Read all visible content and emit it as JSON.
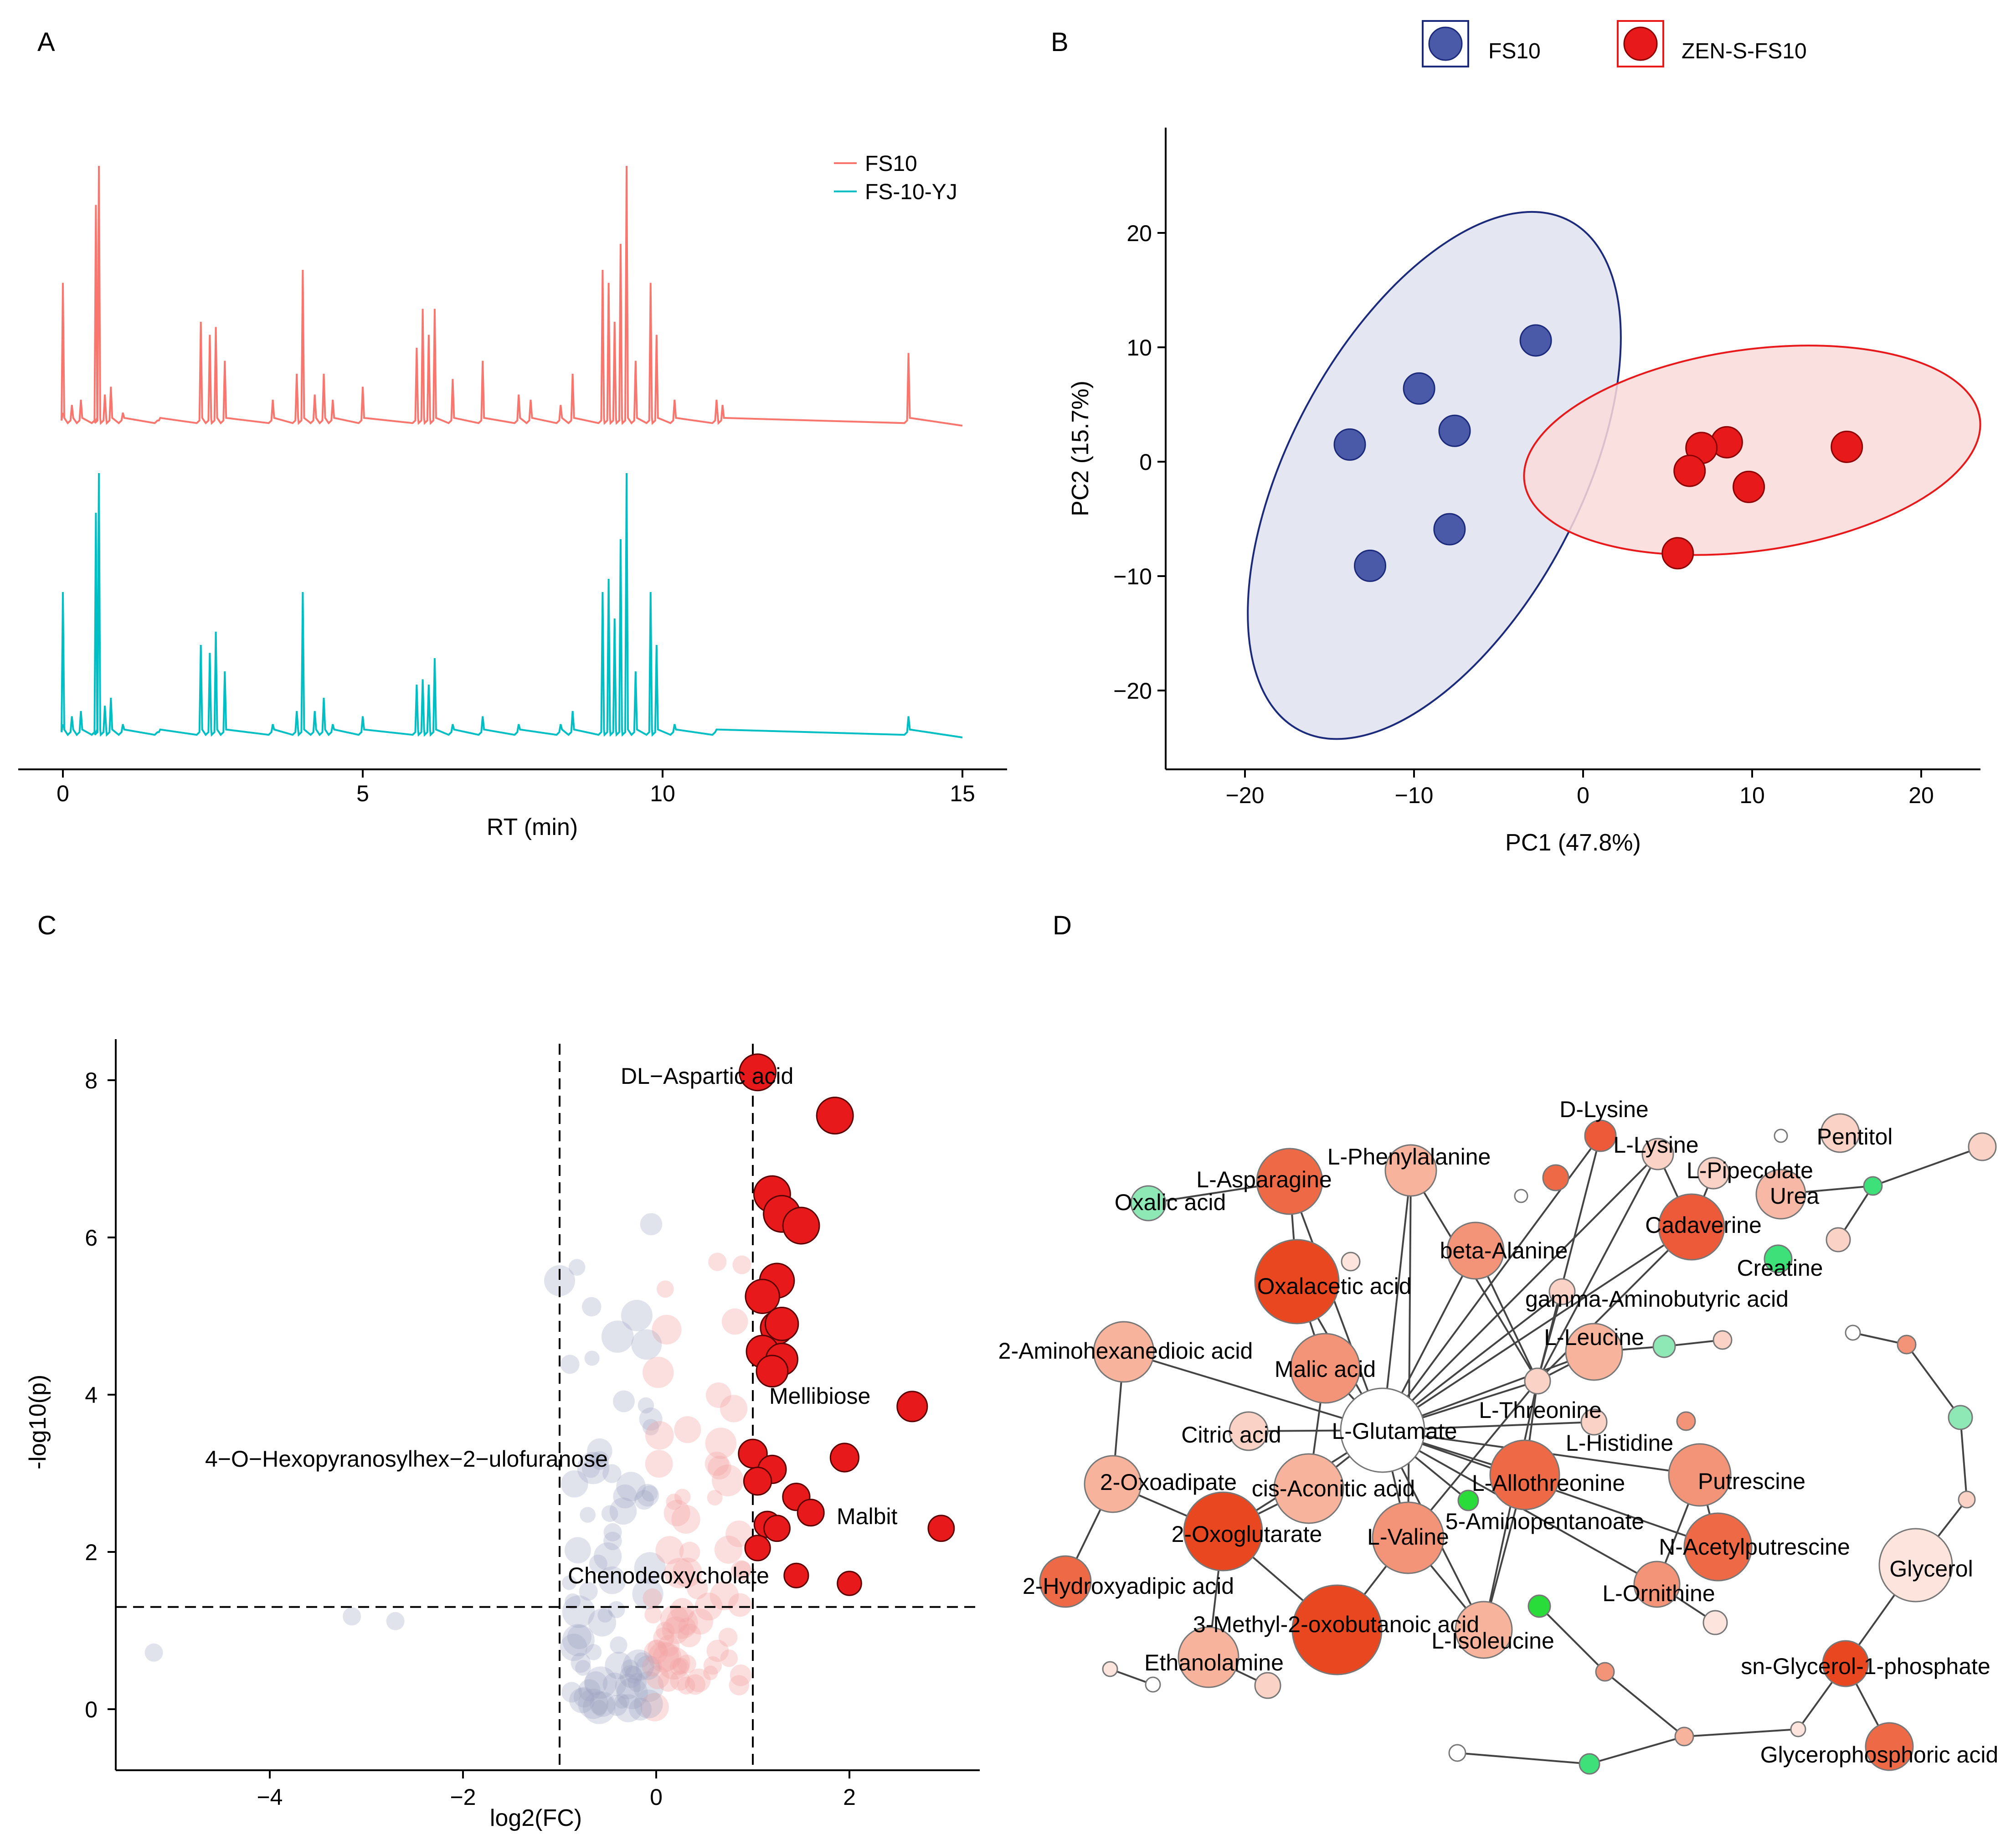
{
  "panels": {
    "A": "A",
    "B": "B",
    "C": "C",
    "D": "D"
  },
  "chart_data": [
    {
      "panel": "A",
      "type": "line",
      "title": "",
      "xlabel": "RT (min)",
      "ylabel": "",
      "xlim": [
        0,
        15
      ],
      "xticks": [
        0,
        5,
        10,
        15
      ],
      "legend_position": "top-right",
      "series": [
        {
          "name": "FS10",
          "color": "#f8766d",
          "baseline": 0.0,
          "peaks": [
            [
              0.0,
              0.55
            ],
            [
              0.15,
              0.08
            ],
            [
              0.3,
              0.1
            ],
            [
              0.55,
              0.85
            ],
            [
              0.6,
              1.0
            ],
            [
              0.7,
              0.12
            ],
            [
              0.8,
              0.15
            ],
            [
              1.0,
              0.05
            ],
            [
              1.6,
              0.02
            ],
            [
              2.3,
              0.4
            ],
            [
              2.45,
              0.35
            ],
            [
              2.55,
              0.38
            ],
            [
              2.7,
              0.25
            ],
            [
              3.5,
              0.1
            ],
            [
              3.9,
              0.2
            ],
            [
              4.0,
              0.6
            ],
            [
              4.2,
              0.12
            ],
            [
              4.35,
              0.2
            ],
            [
              4.5,
              0.1
            ],
            [
              5.0,
              0.15
            ],
            [
              5.9,
              0.3
            ],
            [
              6.0,
              0.45
            ],
            [
              6.1,
              0.35
            ],
            [
              6.2,
              0.45
            ],
            [
              6.5,
              0.18
            ],
            [
              7.0,
              0.25
            ],
            [
              7.6,
              0.12
            ],
            [
              7.8,
              0.1
            ],
            [
              8.3,
              0.08
            ],
            [
              8.5,
              0.2
            ],
            [
              9.0,
              0.6
            ],
            [
              9.1,
              0.55
            ],
            [
              9.2,
              0.4
            ],
            [
              9.3,
              0.7
            ],
            [
              9.4,
              1.0
            ],
            [
              9.55,
              0.25
            ],
            [
              9.8,
              0.55
            ],
            [
              9.9,
              0.35
            ],
            [
              10.2,
              0.1
            ],
            [
              10.9,
              0.1
            ],
            [
              11.0,
              0.08
            ],
            [
              14.1,
              0.28
            ]
          ]
        },
        {
          "name": "FS-10-YJ",
          "color": "#00bfc4",
          "baseline": 0.0,
          "peaks": [
            [
              0.0,
              0.55
            ],
            [
              0.15,
              0.08
            ],
            [
              0.3,
              0.1
            ],
            [
              0.55,
              0.85
            ],
            [
              0.6,
              1.0
            ],
            [
              0.7,
              0.12
            ],
            [
              0.8,
              0.15
            ],
            [
              1.0,
              0.05
            ],
            [
              1.6,
              0.02
            ],
            [
              2.3,
              0.35
            ],
            [
              2.45,
              0.32
            ],
            [
              2.55,
              0.4
            ],
            [
              2.7,
              0.25
            ],
            [
              3.5,
              0.05
            ],
            [
              3.9,
              0.1
            ],
            [
              4.0,
              0.55
            ],
            [
              4.2,
              0.1
            ],
            [
              4.35,
              0.15
            ],
            [
              4.5,
              0.05
            ],
            [
              5.0,
              0.08
            ],
            [
              5.9,
              0.2
            ],
            [
              6.0,
              0.22
            ],
            [
              6.1,
              0.2
            ],
            [
              6.2,
              0.3
            ],
            [
              6.5,
              0.05
            ],
            [
              7.0,
              0.08
            ],
            [
              7.6,
              0.05
            ],
            [
              8.3,
              0.05
            ],
            [
              8.5,
              0.1
            ],
            [
              9.0,
              0.55
            ],
            [
              9.1,
              0.6
            ],
            [
              9.2,
              0.45
            ],
            [
              9.3,
              0.75
            ],
            [
              9.4,
              1.0
            ],
            [
              9.55,
              0.25
            ],
            [
              9.8,
              0.55
            ],
            [
              9.9,
              0.35
            ],
            [
              10.2,
              0.05
            ],
            [
              10.9,
              0.03
            ],
            [
              14.1,
              0.08
            ]
          ]
        }
      ]
    },
    {
      "panel": "B",
      "type": "scatter",
      "title": "",
      "xlabel": "PC1 (47.8%)",
      "ylabel": "PC2 (15.7%)",
      "xlim": [
        -24,
        24
      ],
      "ylim": [
        -27,
        29
      ],
      "xticks": [
        -20,
        -10,
        0,
        10,
        20
      ],
      "yticks": [
        -20,
        -10,
        0,
        10,
        20
      ],
      "legend_position": "top",
      "series": [
        {
          "name": "FS10",
          "color": "#4a5aa8",
          "edge": "#1b2a7a",
          "ellipse_fill": "#dfe3ee",
          "ellipse_stroke": "#1b2a7a",
          "points": [
            [
              -2.8,
              10.6
            ],
            [
              -9.7,
              6.4
            ],
            [
              -7.6,
              2.7
            ],
            [
              -13.8,
              1.5
            ],
            [
              -7.9,
              -5.9
            ],
            [
              -12.6,
              -9.1
            ]
          ]
        },
        {
          "name": "ZEN-S-FS10",
          "color": "#e8191a",
          "edge": "#8b0000",
          "ellipse_fill": "#fadada",
          "ellipse_stroke": "#e8191a",
          "points": [
            [
              8.5,
              1.7
            ],
            [
              7.0,
              1.2
            ],
            [
              15.6,
              1.3
            ],
            [
              6.3,
              -0.8
            ],
            [
              9.8,
              -2.2
            ],
            [
              5.6,
              -8.0
            ]
          ]
        }
      ]
    },
    {
      "panel": "C",
      "type": "scatter",
      "title": "",
      "xlabel": "log2(FC)",
      "ylabel": "-log10(p)",
      "xlim": [
        -5.6,
        3.4
      ],
      "ylim": [
        -0.5,
        8.4
      ],
      "xticks": [
        -4,
        -2,
        0,
        2
      ],
      "yticks": [
        0,
        2,
        4,
        6,
        8
      ],
      "thresholds": {
        "x": [
          -1,
          1
        ],
        "y": 1.3
      },
      "significant_up": [
        [
          1.05,
          8.1
        ],
        [
          1.85,
          7.55
        ],
        [
          1.2,
          6.55
        ],
        [
          1.3,
          6.3
        ],
        [
          1.5,
          6.15
        ],
        [
          1.25,
          5.45
        ],
        [
          1.1,
          5.25
        ],
        [
          1.25,
          4.85
        ],
        [
          1.3,
          4.9
        ],
        [
          1.1,
          4.55
        ],
        [
          1.3,
          4.45
        ],
        [
          1.2,
          4.3
        ],
        [
          2.65,
          3.85
        ],
        [
          1.0,
          3.25
        ],
        [
          1.95,
          3.2
        ],
        [
          1.2,
          3.05
        ],
        [
          1.05,
          2.9
        ],
        [
          1.45,
          2.7
        ],
        [
          1.6,
          2.5
        ],
        [
          1.15,
          2.35
        ],
        [
          1.25,
          2.3
        ],
        [
          2.95,
          2.3
        ],
        [
          1.05,
          2.05
        ],
        [
          1.45,
          1.7
        ],
        [
          2.0,
          1.6
        ]
      ],
      "annotations": [
        {
          "label": "DL−Aspartic acid",
          "x": 1.05,
          "y": 8.1
        },
        {
          "label": "Mellibiose",
          "x": 2.65,
          "y": 3.85
        },
        {
          "label": "4−O−Hexopyranosylhex−2−ulofuranose",
          "x": 1.0,
          "y": 3.25
        },
        {
          "label": "Malbit",
          "x": 2.95,
          "y": 2.3
        },
        {
          "label": "Chenodeoxycholate",
          "x": 1.45,
          "y": 1.7
        }
      ]
    },
    {
      "panel": "D",
      "type": "network",
      "title": "",
      "nodes": [
        {
          "id": "D-Lysine",
          "label": "D-Lysine",
          "color": "#ec5a3a"
        },
        {
          "id": "L-Lysine",
          "label": "L-Lysine",
          "color": "#fbd2c6"
        },
        {
          "id": "Pentitol",
          "label": "Pentitol",
          "color": "#fbd2c6"
        },
        {
          "id": "L-Pipecolate",
          "label": "L-Pipecolate",
          "color": "#fbd2c6"
        },
        {
          "id": "Urea",
          "label": "Urea",
          "color": "#f7b9a6"
        },
        {
          "id": "L-Phenylalanine",
          "label": "L-Phenylalanine",
          "color": "#f8b39c"
        },
        {
          "id": "L-Asparagine",
          "label": "L-Asparagine",
          "color": "#ee6a47"
        },
        {
          "id": "Oxalic acid",
          "label": "Oxalic acid",
          "color": "#8ee8b6"
        },
        {
          "id": "Cadaverine",
          "label": "Cadaverine",
          "color": "#ec5a3a"
        },
        {
          "id": "Creatine",
          "label": "Creatine",
          "color": "#3ee07a"
        },
        {
          "id": "beta-Alanine",
          "label": "beta-Alanine",
          "color": "#f39478"
        },
        {
          "id": "Oxalacetic acid",
          "label": "Oxalacetic acid",
          "color": "#e9471f"
        },
        {
          "id": "gamma-Aminobutyric acid",
          "label": "gamma-Aminobutyric acid",
          "color": "#fbd2c6"
        },
        {
          "id": "2-Aminohexanedioic acid",
          "label": "2-Aminohexanedioic acid",
          "color": "#f8b39c"
        },
        {
          "id": "L-Leucine",
          "label": "L-Leucine",
          "color": "#f8b39c"
        },
        {
          "id": "Malic acid",
          "label": "Malic acid",
          "color": "#f39478"
        },
        {
          "id": "L-Threonine",
          "label": "L-Threonine",
          "color": "#fbd2c6"
        },
        {
          "id": "Citric acid",
          "label": "Citric acid",
          "color": "#fbd2c6"
        },
        {
          "id": "L-Glutamate",
          "label": "L-Glutamate",
          "color": "#ffffff"
        },
        {
          "id": "L-Histidine",
          "label": "L-Histidine",
          "color": "#fbd2c6"
        },
        {
          "id": "2-Oxoadipate",
          "label": "2-Oxoadipate",
          "color": "#f8b39c"
        },
        {
          "id": "cis-Aconitic acid",
          "label": "cis-Aconitic acid",
          "color": "#f8b39c"
        },
        {
          "id": "L-Allothreonine",
          "label": "L-Allothreonine",
          "color": "#ee6a47"
        },
        {
          "id": "Putrescine",
          "label": "Putrescine",
          "color": "#f39478"
        },
        {
          "id": "5-Aminopentanoate",
          "label": "5-Aminopentanoate",
          "color": "#2adc3a"
        },
        {
          "id": "2-Oxoglutarate",
          "label": "2-Oxoglutarate",
          "color": "#e9471f"
        },
        {
          "id": "L-Valine",
          "label": "L-Valine",
          "color": "#f39478"
        },
        {
          "id": "N-Acetylputrescine",
          "label": "N-Acetylputrescine",
          "color": "#ee6a47"
        },
        {
          "id": "Glycerol",
          "label": "Glycerol",
          "color": "#fde5dd"
        },
        {
          "id": "2-Hydroxyadipic acid",
          "label": "2-Hydroxyadipic acid",
          "color": "#ee6a47"
        },
        {
          "id": "L-Ornithine",
          "label": "L-Ornithine",
          "color": "#f39478"
        },
        {
          "id": "3-Methyl-2-oxobutanoic acid",
          "label": "3-Methyl-2-oxobutanoic acid",
          "color": "#e9471f"
        },
        {
          "id": "L-Isoleucine",
          "label": "L-Isoleucine",
          "color": "#f8b39c"
        },
        {
          "id": "Ethanolamine",
          "label": "Ethanolamine",
          "color": "#f8b39c"
        },
        {
          "id": "sn-Glycerol-1-phosphate",
          "label": "sn-Glycerol-1-phosphate",
          "color": "#e9471f"
        },
        {
          "id": "Glycerophosphoric acid",
          "label": "Glycerophosphoric acid",
          "color": "#ee6a47"
        }
      ]
    }
  ]
}
